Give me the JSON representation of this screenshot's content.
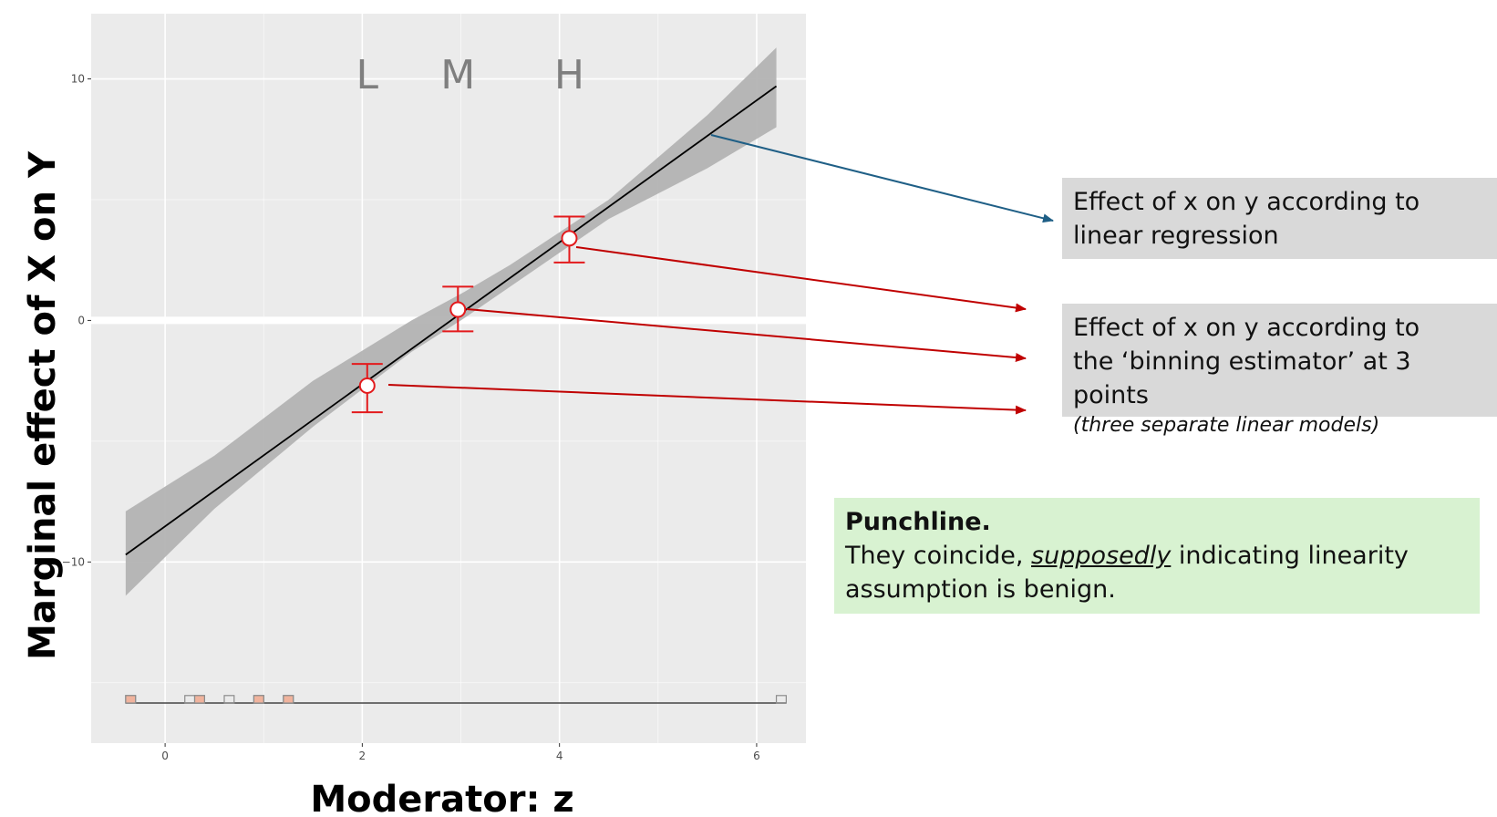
{
  "chart_data": {
    "type": "line",
    "xlabel": "Moderator: z",
    "ylabel": "Marginal effect of X on Y",
    "xlim": [
      -0.75,
      6.5
    ],
    "ylim": [
      -17.5,
      12.7
    ],
    "x_ticks": [
      "0",
      "2",
      "4",
      "6"
    ],
    "y_ticks": [
      "−10",
      "0",
      "10"
    ],
    "grid": true,
    "regression_line": {
      "x": [
        -0.4,
        6.2
      ],
      "y": [
        -9.7,
        9.7
      ]
    },
    "confidence_band": {
      "x": [
        -0.4,
        0.5,
        1.5,
        2.5,
        3.0,
        3.5,
        4.5,
        5.5,
        6.2
      ],
      "lower": [
        -11.4,
        -7.8,
        -4.4,
        -1.3,
        0.0,
        1.4,
        4.2,
        6.3,
        8.0
      ],
      "upper": [
        -7.9,
        -5.6,
        -2.5,
        0.0,
        1.1,
        2.3,
        5.0,
        8.5,
        11.3
      ]
    },
    "bin_estimates": [
      {
        "label": "L",
        "x": 2.05,
        "y": -2.7,
        "lower": -3.8,
        "upper": -1.8
      },
      {
        "label": "M",
        "x": 2.97,
        "y": 0.45,
        "lower": -0.45,
        "upper": 1.4
      },
      {
        "label": "H",
        "x": 4.1,
        "y": 3.4,
        "lower": 2.4,
        "upper": 4.3
      }
    ],
    "histogram": {
      "bin_start": -0.4,
      "bin_width": 0.1,
      "total_counts": [
        1,
        0,
        0,
        0,
        0,
        0,
        1,
        1,
        0,
        0,
        1,
        0,
        0,
        1,
        0,
        0,
        1,
        0,
        0,
        0,
        0,
        0,
        0,
        0,
        0,
        0,
        0,
        0,
        0,
        0,
        0,
        0,
        0,
        0,
        0,
        0,
        0,
        0,
        0,
        0,
        0,
        0,
        0,
        0,
        0,
        0,
        0,
        0,
        0,
        0,
        0,
        0,
        0,
        0,
        0,
        0,
        0,
        0,
        0,
        0,
        0,
        0,
        0,
        0,
        0,
        0,
        1
      ],
      "treated_counts": [
        1,
        0,
        0,
        0,
        0,
        0,
        0,
        1,
        0,
        0,
        0,
        0,
        0,
        1,
        0,
        0,
        1,
        0,
        0,
        0,
        0,
        0,
        0,
        0,
        0,
        0,
        0,
        0,
        0,
        0,
        0,
        0,
        0,
        0,
        0,
        0,
        0,
        0,
        0,
        0,
        0,
        0,
        0,
        0,
        0,
        0,
        0,
        0,
        0,
        0,
        0,
        0,
        0,
        0,
        0,
        0,
        0,
        0,
        0,
        0,
        0,
        0,
        0,
        0,
        0,
        0,
        0
      ]
    }
  },
  "annotations": {
    "bin_labels": [
      "L",
      "M",
      "H"
    ],
    "regression_box": {
      "text": "Effect of x on y according to linear regression"
    },
    "binning_box": {
      "line1": "Effect of x on y according to",
      "line2": "the ‘binning estimator’ at 3 points",
      "sub": "(three separate linear models)"
    },
    "punchline_box": {
      "head": "Punchline.",
      "pre": "They coincide, ",
      "emph": "supposedly",
      "post": " indicating linearity assumption is benign."
    }
  },
  "colors": {
    "panel_background": "#ebebeb",
    "grid": "#ffffff",
    "band": "#b3b3b3",
    "line": "#000000",
    "error_bar": "#e31a1c",
    "hist_fill": "#f0b39d",
    "hist_stroke": "#8c8c8c",
    "arrow_blue": "#1f5f86",
    "arrow_red": "#c00000",
    "gray_box": "#d9d9d9",
    "green_box": "#d8f2d1"
  }
}
